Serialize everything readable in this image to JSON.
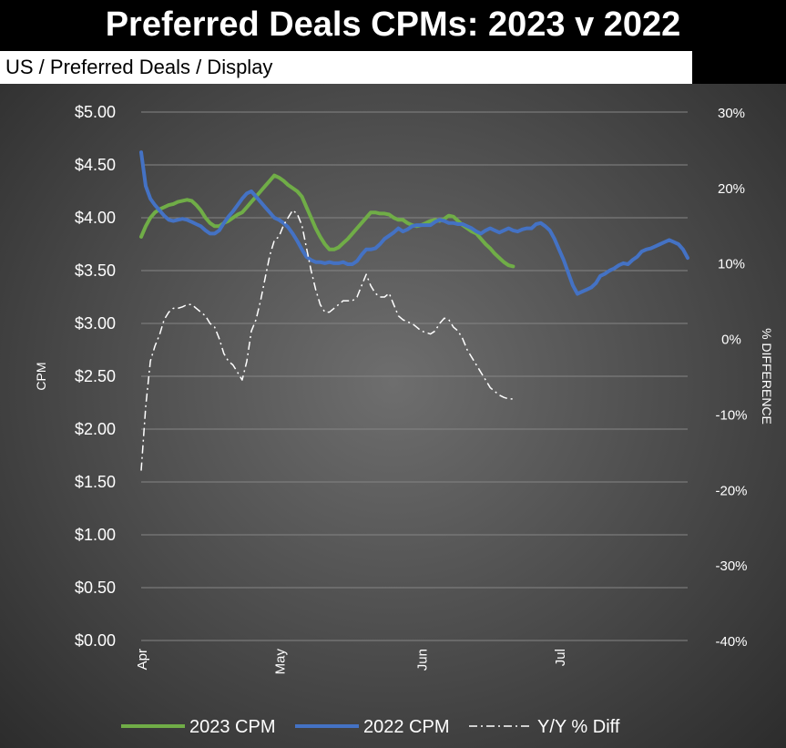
{
  "chart_data": {
    "type": "line",
    "title": "Preferred Deals CPMs: 2023 v 2022",
    "subtitle": "US / Preferred Deals / Display",
    "ylabel": "CPM",
    "y2label": "% DIFFERENCE",
    "ylim": [
      0,
      5
    ],
    "y2lim": [
      -40,
      30
    ],
    "y_ticks": [
      "$0.00",
      "$0.50",
      "$1.00",
      "$1.50",
      "$2.00",
      "$2.50",
      "$3.00",
      "$3.50",
      "$4.00",
      "$4.50",
      "$5.00"
    ],
    "y2_ticks": [
      "-40%",
      "-30%",
      "-20%",
      "-10%",
      "0%",
      "10%",
      "20%",
      "30%"
    ],
    "x_ticks": [
      {
        "label": "Apr",
        "day": 1
      },
      {
        "label": "May",
        "day": 31
      },
      {
        "label": "Jun",
        "day": 62
      },
      {
        "label": "Jul",
        "day": 92
      }
    ],
    "xlim": [
      1,
      120
    ],
    "grid": true,
    "legend_position": "bottom",
    "series": [
      {
        "name": "2023 CPM",
        "axis": "left",
        "color": "#70ad47",
        "style": "solid",
        "x": [
          1,
          2,
          3,
          4,
          5,
          6,
          7,
          8,
          9,
          10,
          11,
          12,
          13,
          14,
          15,
          16,
          17,
          18,
          19,
          20,
          21,
          22,
          23,
          24,
          25,
          26,
          27,
          28,
          29,
          30,
          31,
          32,
          33,
          34,
          35,
          36,
          37,
          38,
          39,
          40,
          41,
          42,
          43,
          44,
          45,
          46,
          47,
          48,
          49,
          50,
          51,
          52,
          53,
          54,
          55,
          56,
          57,
          58,
          59,
          60,
          61,
          62,
          63,
          64,
          65,
          66,
          67,
          68,
          69,
          70,
          71,
          72,
          73,
          74,
          75,
          76,
          77,
          78,
          79,
          80,
          81,
          82
        ],
        "values": [
          3.82,
          3.92,
          4.0,
          4.05,
          4.08,
          4.1,
          4.12,
          4.13,
          4.15,
          4.16,
          4.17,
          4.16,
          4.12,
          4.07,
          4.0,
          3.95,
          3.92,
          3.92,
          3.95,
          3.97,
          4.0,
          4.03,
          4.05,
          4.1,
          4.15,
          4.2,
          4.25,
          4.3,
          4.35,
          4.4,
          4.38,
          4.35,
          4.31,
          4.28,
          4.25,
          4.2,
          4.1,
          4.0,
          3.9,
          3.82,
          3.75,
          3.7,
          3.7,
          3.72,
          3.76,
          3.8,
          3.85,
          3.9,
          3.95,
          4.0,
          4.05,
          4.05,
          4.04,
          4.04,
          4.03,
          4.0,
          3.98,
          3.98,
          3.95,
          3.93,
          3.92,
          3.93,
          3.95,
          3.97,
          3.98,
          3.97,
          3.99,
          4.02,
          4.01,
          3.97,
          3.93,
          3.9,
          3.87,
          3.85,
          3.8,
          3.75,
          3.71,
          3.66,
          3.62,
          3.58,
          3.55,
          3.54
        ]
      },
      {
        "name": "2022 CPM",
        "axis": "left",
        "color": "#4472c4",
        "style": "solid",
        "x": [
          1,
          2,
          3,
          4,
          5,
          6,
          7,
          8,
          9,
          10,
          11,
          12,
          13,
          14,
          15,
          16,
          17,
          18,
          19,
          20,
          21,
          22,
          23,
          24,
          25,
          26,
          27,
          28,
          29,
          30,
          31,
          32,
          33,
          34,
          35,
          36,
          37,
          38,
          39,
          40,
          41,
          42,
          43,
          44,
          45,
          46,
          47,
          48,
          49,
          50,
          51,
          52,
          53,
          54,
          55,
          56,
          57,
          58,
          59,
          60,
          61,
          62,
          63,
          64,
          65,
          66,
          67,
          68,
          69,
          70,
          71,
          72,
          73,
          74,
          75,
          76,
          77,
          78,
          79,
          80,
          81,
          82,
          83,
          84,
          85,
          86,
          87,
          88,
          89,
          90,
          91,
          92,
          93,
          94,
          95,
          96,
          97,
          98,
          99,
          100,
          101,
          102,
          103,
          104,
          105,
          106,
          107,
          108,
          109,
          110,
          111,
          112,
          113,
          114,
          115,
          116,
          117,
          118,
          119,
          120
        ],
        "values": [
          4.62,
          4.3,
          4.18,
          4.12,
          4.07,
          4.02,
          3.98,
          3.97,
          3.98,
          3.99,
          3.98,
          3.96,
          3.94,
          3.92,
          3.88,
          3.85,
          3.85,
          3.88,
          3.95,
          4.01,
          4.06,
          4.12,
          4.18,
          4.23,
          4.25,
          4.2,
          4.15,
          4.1,
          4.05,
          4.0,
          3.98,
          3.95,
          3.91,
          3.85,
          3.78,
          3.7,
          3.63,
          3.6,
          3.58,
          3.58,
          3.57,
          3.58,
          3.57,
          3.57,
          3.58,
          3.56,
          3.56,
          3.59,
          3.65,
          3.7,
          3.7,
          3.71,
          3.75,
          3.8,
          3.83,
          3.86,
          3.9,
          3.87,
          3.89,
          3.92,
          3.93,
          3.93,
          3.93,
          3.93,
          3.96,
          3.98,
          3.97,
          3.95,
          3.95,
          3.94,
          3.94,
          3.92,
          3.9,
          3.87,
          3.85,
          3.88,
          3.9,
          3.88,
          3.86,
          3.88,
          3.9,
          3.88,
          3.87,
          3.89,
          3.9,
          3.9,
          3.94,
          3.95,
          3.92,
          3.88,
          3.8,
          3.7,
          3.6,
          3.48,
          3.36,
          3.28,
          3.3,
          3.32,
          3.34,
          3.38,
          3.45,
          3.47,
          3.5,
          3.52,
          3.55,
          3.57,
          3.56,
          3.6,
          3.63,
          3.68,
          3.7,
          3.71,
          3.73,
          3.75,
          3.77,
          3.79,
          3.77,
          3.75,
          3.7,
          3.62
        ]
      },
      {
        "name": "Y/Y % Diff",
        "axis": "right",
        "color": "#ffffff",
        "style": "dashdot",
        "x": [
          1,
          2,
          3,
          4,
          5,
          6,
          7,
          8,
          9,
          10,
          11,
          12,
          13,
          14,
          15,
          16,
          17,
          18,
          19,
          20,
          21,
          22,
          23,
          24,
          25,
          26,
          27,
          28,
          29,
          30,
          31,
          32,
          33,
          34,
          35,
          36,
          37,
          38,
          39,
          40,
          41,
          42,
          43,
          44,
          45,
          46,
          47,
          48,
          49,
          50,
          51,
          52,
          53,
          54,
          55,
          56,
          57,
          58,
          59,
          60,
          61,
          62,
          63,
          64,
          65,
          66,
          67,
          68,
          69,
          70,
          71,
          72,
          73,
          74,
          75,
          76,
          77,
          78,
          79,
          80,
          81,
          82
        ],
        "values": [
          -17.5,
          -9,
          -3,
          -1,
          0.5,
          2.5,
          3.5,
          4,
          4,
          4.2,
          4.5,
          4.5,
          4,
          3.5,
          3,
          2,
          1.5,
          0,
          -2,
          -3,
          -3.5,
          -4.5,
          -5.5,
          -3,
          1,
          2.5,
          5,
          8,
          11,
          13,
          13.5,
          15,
          16,
          17,
          16.5,
          15,
          12,
          9,
          6.5,
          4.5,
          3.5,
          3.5,
          4,
          4.5,
          5,
          5,
          5,
          5.5,
          7,
          8.5,
          7,
          6,
          5.5,
          5.5,
          6,
          4.5,
          3,
          2.5,
          2.2,
          2,
          1.5,
          1,
          0.8,
          0.6,
          1,
          2,
          2.7,
          2.5,
          1.5,
          1,
          0,
          -1.5,
          -2.5,
          -3.5,
          -4.5,
          -5.5,
          -6.5,
          -7,
          -7.5,
          -7.8,
          -8,
          -8
        ]
      }
    ]
  }
}
